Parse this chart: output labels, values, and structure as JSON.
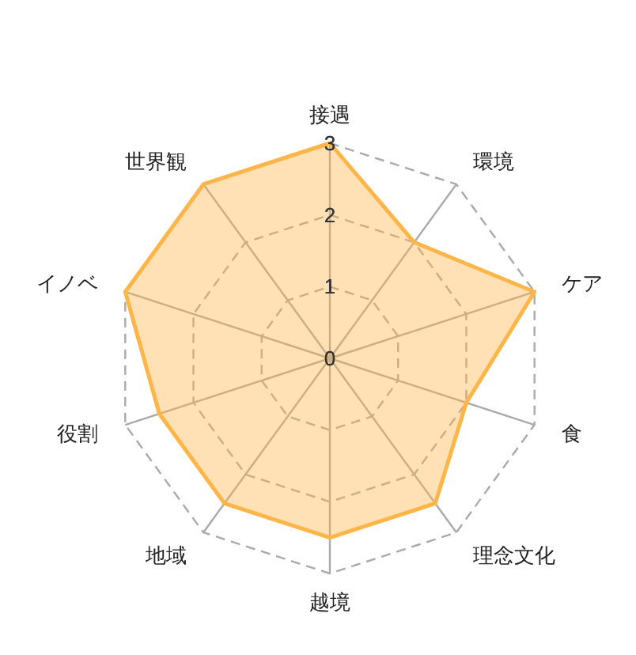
{
  "chart_data": {
    "type": "radar",
    "categories": [
      "接遇",
      "環境",
      "ケア",
      "食",
      "理念文化",
      "越境",
      "地域",
      "役割",
      "イノベ",
      "世界観"
    ],
    "series": [
      {
        "color": "#ffb547",
        "values": [
          3,
          2,
          3,
          2,
          2.5,
          2.5,
          2.5,
          2.5,
          3,
          3
        ]
      }
    ],
    "ylim": [
      0,
      3
    ],
    "yticks": [
      0,
      1,
      2,
      3
    ],
    "grid": true
  }
}
